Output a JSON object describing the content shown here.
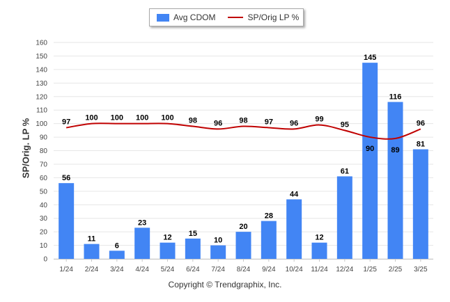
{
  "legend": {
    "bar_label": "Avg CDOM",
    "line_label": "SP/Orig LP %"
  },
  "footer": {
    "copyright": "Copyright © Trendgraphix, Inc."
  },
  "colors": {
    "bar": "#4285f4",
    "line": "#c00000",
    "grid": "#e6e6e6",
    "axis": "#555555"
  },
  "chart_data": {
    "type": "bar",
    "categories": [
      "1/24",
      "2/24",
      "3/24",
      "4/24",
      "5/24",
      "6/24",
      "7/24",
      "8/24",
      "9/24",
      "10/24",
      "11/24",
      "12/24",
      "1/25",
      "2/25",
      "3/25"
    ],
    "series": [
      {
        "name": "Avg CDOM",
        "type": "bar",
        "values": [
          56,
          11,
          6,
          23,
          12,
          15,
          10,
          20,
          28,
          44,
          12,
          61,
          145,
          116,
          81
        ]
      },
      {
        "name": "SP/Orig LP %",
        "type": "line",
        "values": [
          97,
          100,
          100,
          100,
          100,
          98,
          96,
          98,
          97,
          96,
          99,
          95,
          90,
          89,
          96
        ]
      }
    ],
    "ylabel": "SP/Orig. LP %",
    "xlabel": "",
    "ylim": [
      0,
      160
    ],
    "yticks": [
      0,
      10,
      20,
      30,
      40,
      50,
      60,
      70,
      80,
      90,
      100,
      110,
      120,
      130,
      140,
      150,
      160
    ],
    "grid": true,
    "legend_position": "top-center"
  }
}
